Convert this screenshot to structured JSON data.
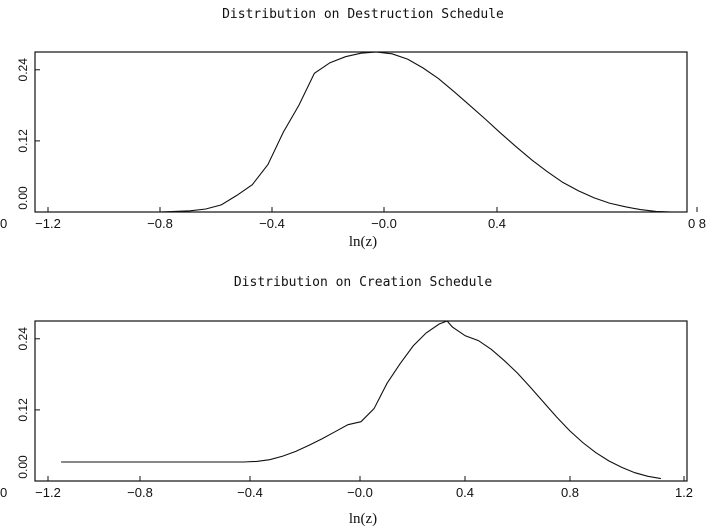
{
  "chart_data": [
    {
      "type": "line",
      "title": "Distribution on Destruction Schedule",
      "xlabel": "ln(z)",
      "ylabel": "",
      "xlim": [
        -1.3,
        0.8
      ],
      "ylim": [
        0,
        0.27
      ],
      "xtick_labels": [
        "0",
        "−1.2",
        "−0.8",
        "−0.4",
        "−0.0",
        "0.4",
        "0 8"
      ],
      "ytick_labels": [
        "0.00",
        "0.12",
        "0.24"
      ],
      "yticks": [
        0,
        0.12,
        0.24
      ],
      "series": [
        {
          "x": [
            -1.3,
            -0.9,
            -0.8,
            -0.75,
            -0.7,
            -0.65,
            -0.6,
            -0.55,
            -0.5,
            -0.45,
            -0.4,
            -0.35,
            -0.3,
            -0.25,
            -0.2,
            -0.15,
            -0.1,
            -0.05,
            0.0,
            0.05,
            0.1,
            0.15,
            0.2,
            0.25,
            0.3,
            0.35,
            0.4,
            0.45,
            0.5,
            0.55,
            0.6,
            0.65,
            0.7,
            0.75
          ],
          "y": [
            0.0,
            0.0,
            0.002,
            0.005,
            0.012,
            0.028,
            0.046,
            0.08,
            0.135,
            0.18,
            0.234,
            0.252,
            0.262,
            0.268,
            0.27,
            0.267,
            0.258,
            0.243,
            0.225,
            0.203,
            0.18,
            0.157,
            0.133,
            0.11,
            0.088,
            0.068,
            0.05,
            0.036,
            0.024,
            0.015,
            0.009,
            0.004,
            0.001,
            0.0
          ]
        }
      ]
    },
    {
      "type": "line",
      "title": "Distribution on Creation Schedule",
      "xlabel": "ln(z)",
      "ylabel": "",
      "xlim": [
        -1.3,
        1.2
      ],
      "ylim": [
        0,
        0.27
      ],
      "xtick_labels": [
        "0",
        "−1.2",
        "−0.8",
        "−0.4",
        "−0.0",
        "0.4",
        "0.8",
        "1.2"
      ],
      "ytick_labels": [
        "0.00",
        "0.12",
        "0.24"
      ],
      "yticks": [
        0,
        0.12,
        0.24
      ],
      "series": [
        {
          "x": [
            -1.2,
            -0.5,
            -0.45,
            -0.4,
            -0.35,
            -0.3,
            -0.25,
            -0.2,
            -0.15,
            -0.1,
            -0.05,
            0.0,
            0.05,
            0.1,
            0.15,
            0.2,
            0.25,
            0.28,
            0.3,
            0.35,
            0.4,
            0.45,
            0.5,
            0.55,
            0.6,
            0.65,
            0.7,
            0.75,
            0.8,
            0.85,
            0.9,
            0.95,
            1.0,
            1.05,
            1.1
          ],
          "y": [
            0.032,
            0.032,
            0.033,
            0.036,
            0.042,
            0.05,
            0.06,
            0.071,
            0.083,
            0.095,
            0.1,
            0.122,
            0.165,
            0.198,
            0.228,
            0.25,
            0.265,
            0.27,
            0.26,
            0.245,
            0.237,
            0.222,
            0.203,
            0.182,
            0.158,
            0.133,
            0.108,
            0.085,
            0.065,
            0.048,
            0.034,
            0.023,
            0.014,
            0.008,
            0.004
          ]
        }
      ]
    }
  ]
}
